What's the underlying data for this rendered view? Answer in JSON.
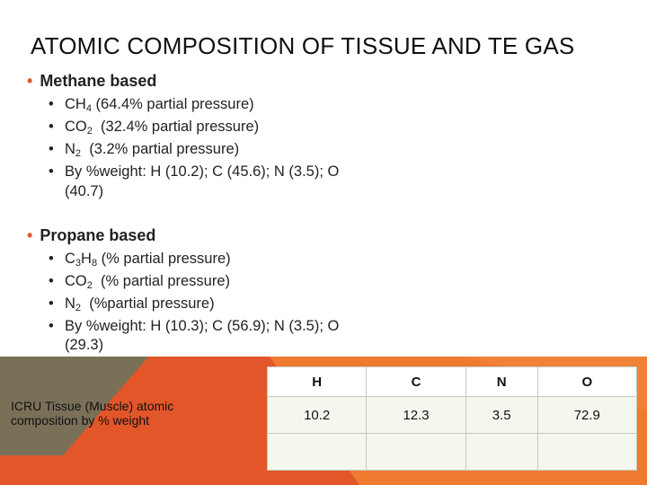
{
  "slide": {
    "title": "ATOMIC COMPOSITION OF TISSUE AND TE GAS",
    "sections": [
      {
        "heading": "Methane based",
        "items": [
          {
            "pre": "CH",
            "sub": "4",
            "post": " (64.4% partial pressure)"
          },
          {
            "pre": "CO",
            "sub": "2",
            "post": "  (32.4% partial pressure)"
          },
          {
            "pre": "N",
            "sub": "2",
            "post": "  (3.2% partial pressure)"
          },
          {
            "line1": "By %weight: H (10.2); C (45.6); N (3.5); O",
            "line2": "(40.7)"
          }
        ]
      },
      {
        "heading": "Propane based",
        "items": [
          {
            "pre": "C",
            "sub": "3",
            "mid": "H",
            "sub2": "8",
            "post": " (% partial pressure)"
          },
          {
            "pre": "CO",
            "sub": "2",
            "post": "  (% partial pressure)"
          },
          {
            "pre": "N",
            "sub": "2",
            "post": "  (%partial pressure)"
          },
          {
            "line1": "By %weight: H (10.3); C (56.9); N (3.5); O",
            "line2": "(29.3)"
          }
        ]
      }
    ],
    "bullet_char": "•",
    "tissue_label": "ICRU Tissue (Muscle) atomic composition by % weight",
    "table": {
      "headers": [
        "H",
        "C",
        "N",
        "O"
      ],
      "rows": [
        [
          "10.2",
          "12.3",
          "3.5",
          "72.9"
        ],
        [
          "",
          "",
          "",
          ""
        ]
      ]
    },
    "colors": {
      "accent": "#e05a2b",
      "band_dark": "#6d6551",
      "band_red": "#e2562a",
      "band_orange": "#ef7a30"
    }
  }
}
